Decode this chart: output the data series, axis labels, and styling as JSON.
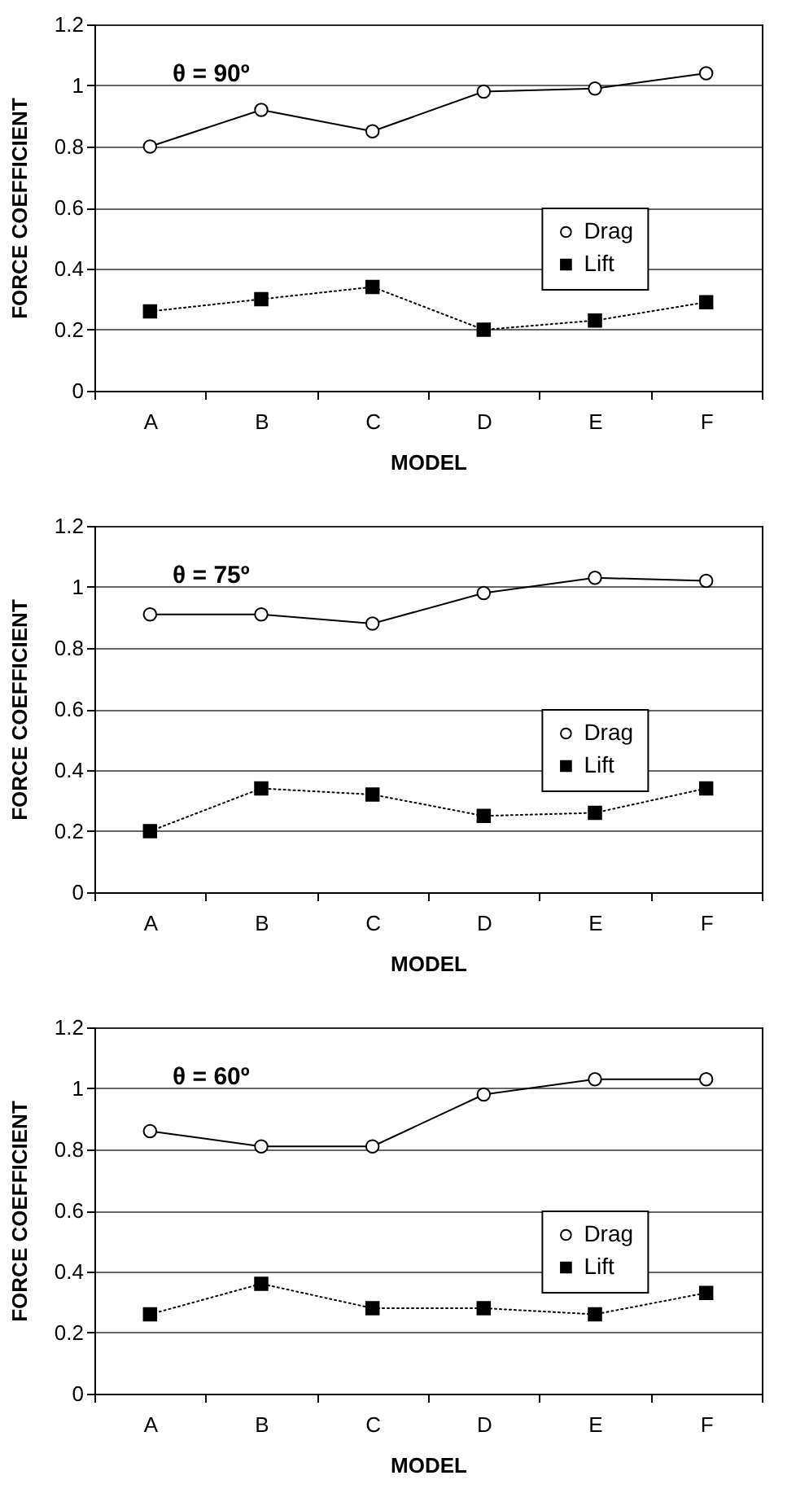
{
  "chart_data": [
    {
      "type": "line",
      "annotations": [
        "θ = 90º"
      ],
      "xlabel": "MODEL",
      "ylabel": "FORCE COEFFICIENT",
      "categories": [
        "A",
        "B",
        "C",
        "D",
        "E",
        "F"
      ],
      "ylim": [
        0,
        1.2
      ],
      "yticks": [
        0,
        0.2,
        0.4,
        0.6,
        0.8,
        1,
        1.2
      ],
      "grid": "y",
      "legend": "right",
      "series": [
        {
          "name": "Drag",
          "color": "#000000",
          "marker": "circle",
          "line_style": "solid",
          "values": [
            0.8,
            0.92,
            0.85,
            0.98,
            0.99,
            1.04
          ]
        },
        {
          "name": "Lift",
          "color": "#000000",
          "marker": "square",
          "line_style": "dotted",
          "values": [
            0.26,
            0.3,
            0.34,
            0.2,
            0.23,
            0.29
          ]
        }
      ]
    },
    {
      "type": "line",
      "annotations": [
        "θ = 75º"
      ],
      "xlabel": "MODEL",
      "ylabel": "FORCE COEFFICIENT",
      "categories": [
        "A",
        "B",
        "C",
        "D",
        "E",
        "F"
      ],
      "ylim": [
        0,
        1.2
      ],
      "yticks": [
        0,
        0.2,
        0.4,
        0.6,
        0.8,
        1,
        1.2
      ],
      "grid": "y",
      "legend": "right",
      "series": [
        {
          "name": "Drag",
          "color": "#000000",
          "marker": "circle",
          "line_style": "solid",
          "values": [
            0.91,
            0.91,
            0.88,
            0.98,
            1.03,
            1.02
          ]
        },
        {
          "name": "Lift",
          "color": "#000000",
          "marker": "square",
          "line_style": "dotted",
          "values": [
            0.2,
            0.34,
            0.32,
            0.25,
            0.26,
            0.34
          ]
        }
      ]
    },
    {
      "type": "line",
      "annotations": [
        "θ = 60º"
      ],
      "xlabel": "MODEL",
      "ylabel": "FORCE COEFFICIENT",
      "categories": [
        "A",
        "B",
        "C",
        "D",
        "E",
        "F"
      ],
      "ylim": [
        0,
        1.2
      ],
      "yticks": [
        0,
        0.2,
        0.4,
        0.6,
        0.8,
        1,
        1.2
      ],
      "grid": "y",
      "legend": "right",
      "series": [
        {
          "name": "Drag",
          "color": "#000000",
          "marker": "circle",
          "line_style": "solid",
          "values": [
            0.86,
            0.81,
            0.81,
            0.98,
            1.03,
            1.03
          ]
        },
        {
          "name": "Lift",
          "color": "#000000",
          "marker": "square",
          "line_style": "dotted",
          "values": [
            0.26,
            0.36,
            0.28,
            0.28,
            0.26,
            0.33
          ]
        }
      ]
    }
  ]
}
